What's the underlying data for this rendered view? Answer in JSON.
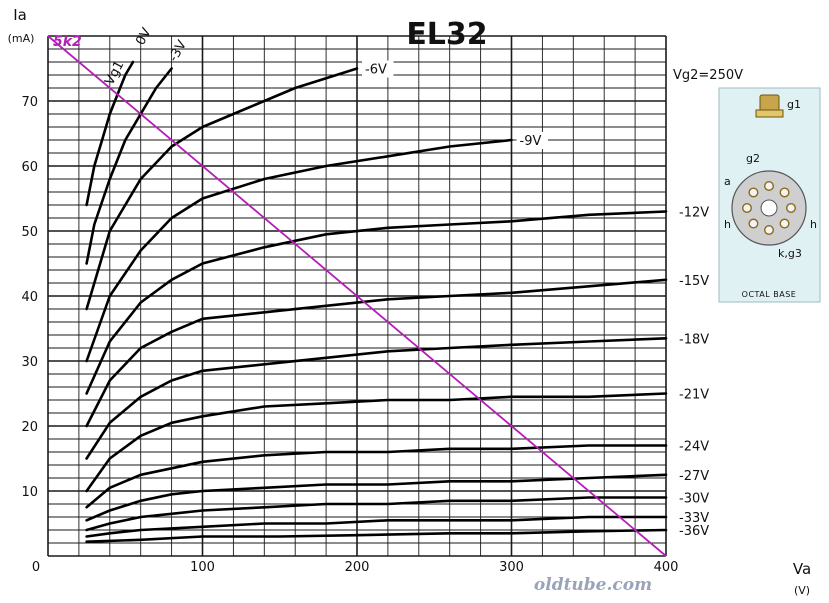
{
  "chart_data": {
    "type": "line",
    "title": "EL32",
    "ylabel_symbol": "Ia",
    "ylabel_unit": "(mA)",
    "xlabel_symbol": "Va",
    "xlabel_unit": "(V)",
    "xlim": [
      0,
      400
    ],
    "ylim": [
      0,
      80
    ],
    "x_ticks": [
      0,
      100,
      200,
      300,
      400
    ],
    "y_ticks": [
      10,
      20,
      30,
      40,
      50,
      60,
      70
    ],
    "grid": true,
    "condition_label": "Vg2=250V",
    "vg1_prefix": "Vg1",
    "series": [
      {
        "name": "0V",
        "points": [
          [
            25,
            54
          ],
          [
            30,
            60
          ],
          [
            35,
            64
          ],
          [
            40,
            68
          ],
          [
            45,
            71
          ],
          [
            50,
            74
          ],
          [
            55,
            76
          ]
        ]
      },
      {
        "name": "-3V",
        "points": [
          [
            25,
            45
          ],
          [
            30,
            51
          ],
          [
            40,
            58
          ],
          [
            50,
            64
          ],
          [
            60,
            68
          ],
          [
            70,
            72
          ],
          [
            80,
            75
          ]
        ]
      },
      {
        "name": "-6V",
        "points": [
          [
            25,
            38
          ],
          [
            40,
            50
          ],
          [
            60,
            58
          ],
          [
            80,
            63
          ],
          [
            100,
            66
          ],
          [
            130,
            69
          ],
          [
            160,
            72
          ],
          [
            200,
            75
          ]
        ]
      },
      {
        "name": "-9V",
        "points": [
          [
            25,
            30
          ],
          [
            40,
            40
          ],
          [
            60,
            47
          ],
          [
            80,
            52
          ],
          [
            100,
            55
          ],
          [
            140,
            58
          ],
          [
            180,
            60
          ],
          [
            220,
            61.5
          ],
          [
            260,
            63
          ],
          [
            300,
            64
          ]
        ]
      },
      {
        "name": "-12V",
        "points": [
          [
            25,
            25
          ],
          [
            40,
            33
          ],
          [
            60,
            39
          ],
          [
            80,
            42.5
          ],
          [
            100,
            45
          ],
          [
            140,
            47.5
          ],
          [
            180,
            49.5
          ],
          [
            220,
            50.5
          ],
          [
            260,
            51
          ],
          [
            300,
            51.5
          ],
          [
            350,
            52.5
          ],
          [
            400,
            53
          ]
        ]
      },
      {
        "name": "-15V",
        "points": [
          [
            25,
            20
          ],
          [
            40,
            27
          ],
          [
            60,
            32
          ],
          [
            80,
            34.5
          ],
          [
            100,
            36.5
          ],
          [
            140,
            37.5
          ],
          [
            180,
            38.5
          ],
          [
            220,
            39.5
          ],
          [
            260,
            40
          ],
          [
            300,
            40.5
          ],
          [
            350,
            41.5
          ],
          [
            400,
            42.5
          ]
        ]
      },
      {
        "name": "-18V",
        "points": [
          [
            25,
            15
          ],
          [
            40,
            20.5
          ],
          [
            60,
            24.5
          ],
          [
            80,
            27
          ],
          [
            100,
            28.5
          ],
          [
            140,
            29.5
          ],
          [
            180,
            30.5
          ],
          [
            220,
            31.5
          ],
          [
            260,
            32
          ],
          [
            300,
            32.5
          ],
          [
            350,
            33
          ],
          [
            400,
            33.5
          ]
        ]
      },
      {
        "name": "-21V",
        "points": [
          [
            25,
            10
          ],
          [
            40,
            15
          ],
          [
            60,
            18.5
          ],
          [
            80,
            20.5
          ],
          [
            100,
            21.5
          ],
          [
            140,
            23
          ],
          [
            180,
            23.5
          ],
          [
            220,
            24
          ],
          [
            260,
            24
          ],
          [
            300,
            24.5
          ],
          [
            350,
            24.5
          ],
          [
            400,
            25
          ]
        ]
      },
      {
        "name": "-24V",
        "points": [
          [
            25,
            7.5
          ],
          [
            40,
            10.5
          ],
          [
            60,
            12.5
          ],
          [
            80,
            13.5
          ],
          [
            100,
            14.5
          ],
          [
            140,
            15.5
          ],
          [
            180,
            16
          ],
          [
            220,
            16
          ],
          [
            260,
            16.5
          ],
          [
            300,
            16.5
          ],
          [
            350,
            17
          ],
          [
            400,
            17
          ]
        ]
      },
      {
        "name": "-27V",
        "points": [
          [
            25,
            5.5
          ],
          [
            40,
            7
          ],
          [
            60,
            8.5
          ],
          [
            80,
            9.5
          ],
          [
            100,
            10
          ],
          [
            140,
            10.5
          ],
          [
            180,
            11
          ],
          [
            220,
            11
          ],
          [
            260,
            11.5
          ],
          [
            300,
            11.5
          ],
          [
            350,
            12
          ],
          [
            400,
            12.5
          ]
        ]
      },
      {
        "name": "-30V",
        "points": [
          [
            25,
            4
          ],
          [
            40,
            5
          ],
          [
            60,
            6
          ],
          [
            80,
            6.5
          ],
          [
            100,
            7
          ],
          [
            140,
            7.5
          ],
          [
            180,
            8
          ],
          [
            220,
            8
          ],
          [
            260,
            8.5
          ],
          [
            300,
            8.5
          ],
          [
            350,
            9
          ],
          [
            400,
            9
          ]
        ]
      },
      {
        "name": "-33V",
        "points": [
          [
            25,
            3
          ],
          [
            40,
            3.5
          ],
          [
            60,
            4
          ],
          [
            100,
            4.5
          ],
          [
            140,
            5
          ],
          [
            180,
            5
          ],
          [
            220,
            5.5
          ],
          [
            260,
            5.5
          ],
          [
            300,
            5.5
          ],
          [
            350,
            6
          ],
          [
            400,
            6
          ]
        ]
      },
      {
        "name": "-36V",
        "points": [
          [
            25,
            2.2
          ],
          [
            60,
            2.5
          ],
          [
            100,
            3
          ],
          [
            150,
            3
          ],
          [
            200,
            3.2
          ],
          [
            260,
            3.5
          ],
          [
            300,
            3.5
          ],
          [
            350,
            3.8
          ],
          [
            400,
            4
          ]
        ]
      }
    ],
    "load_line": {
      "label": "5k2",
      "color": "#b51fb8",
      "points": [
        [
          0,
          80
        ],
        [
          400,
          0
        ]
      ]
    },
    "inset": {
      "caption": "OCTAL BASE",
      "pin_labels": [
        "g1",
        "g2",
        "a",
        "h",
        "h",
        "k,g3"
      ]
    },
    "watermark": "oldtube.com"
  }
}
